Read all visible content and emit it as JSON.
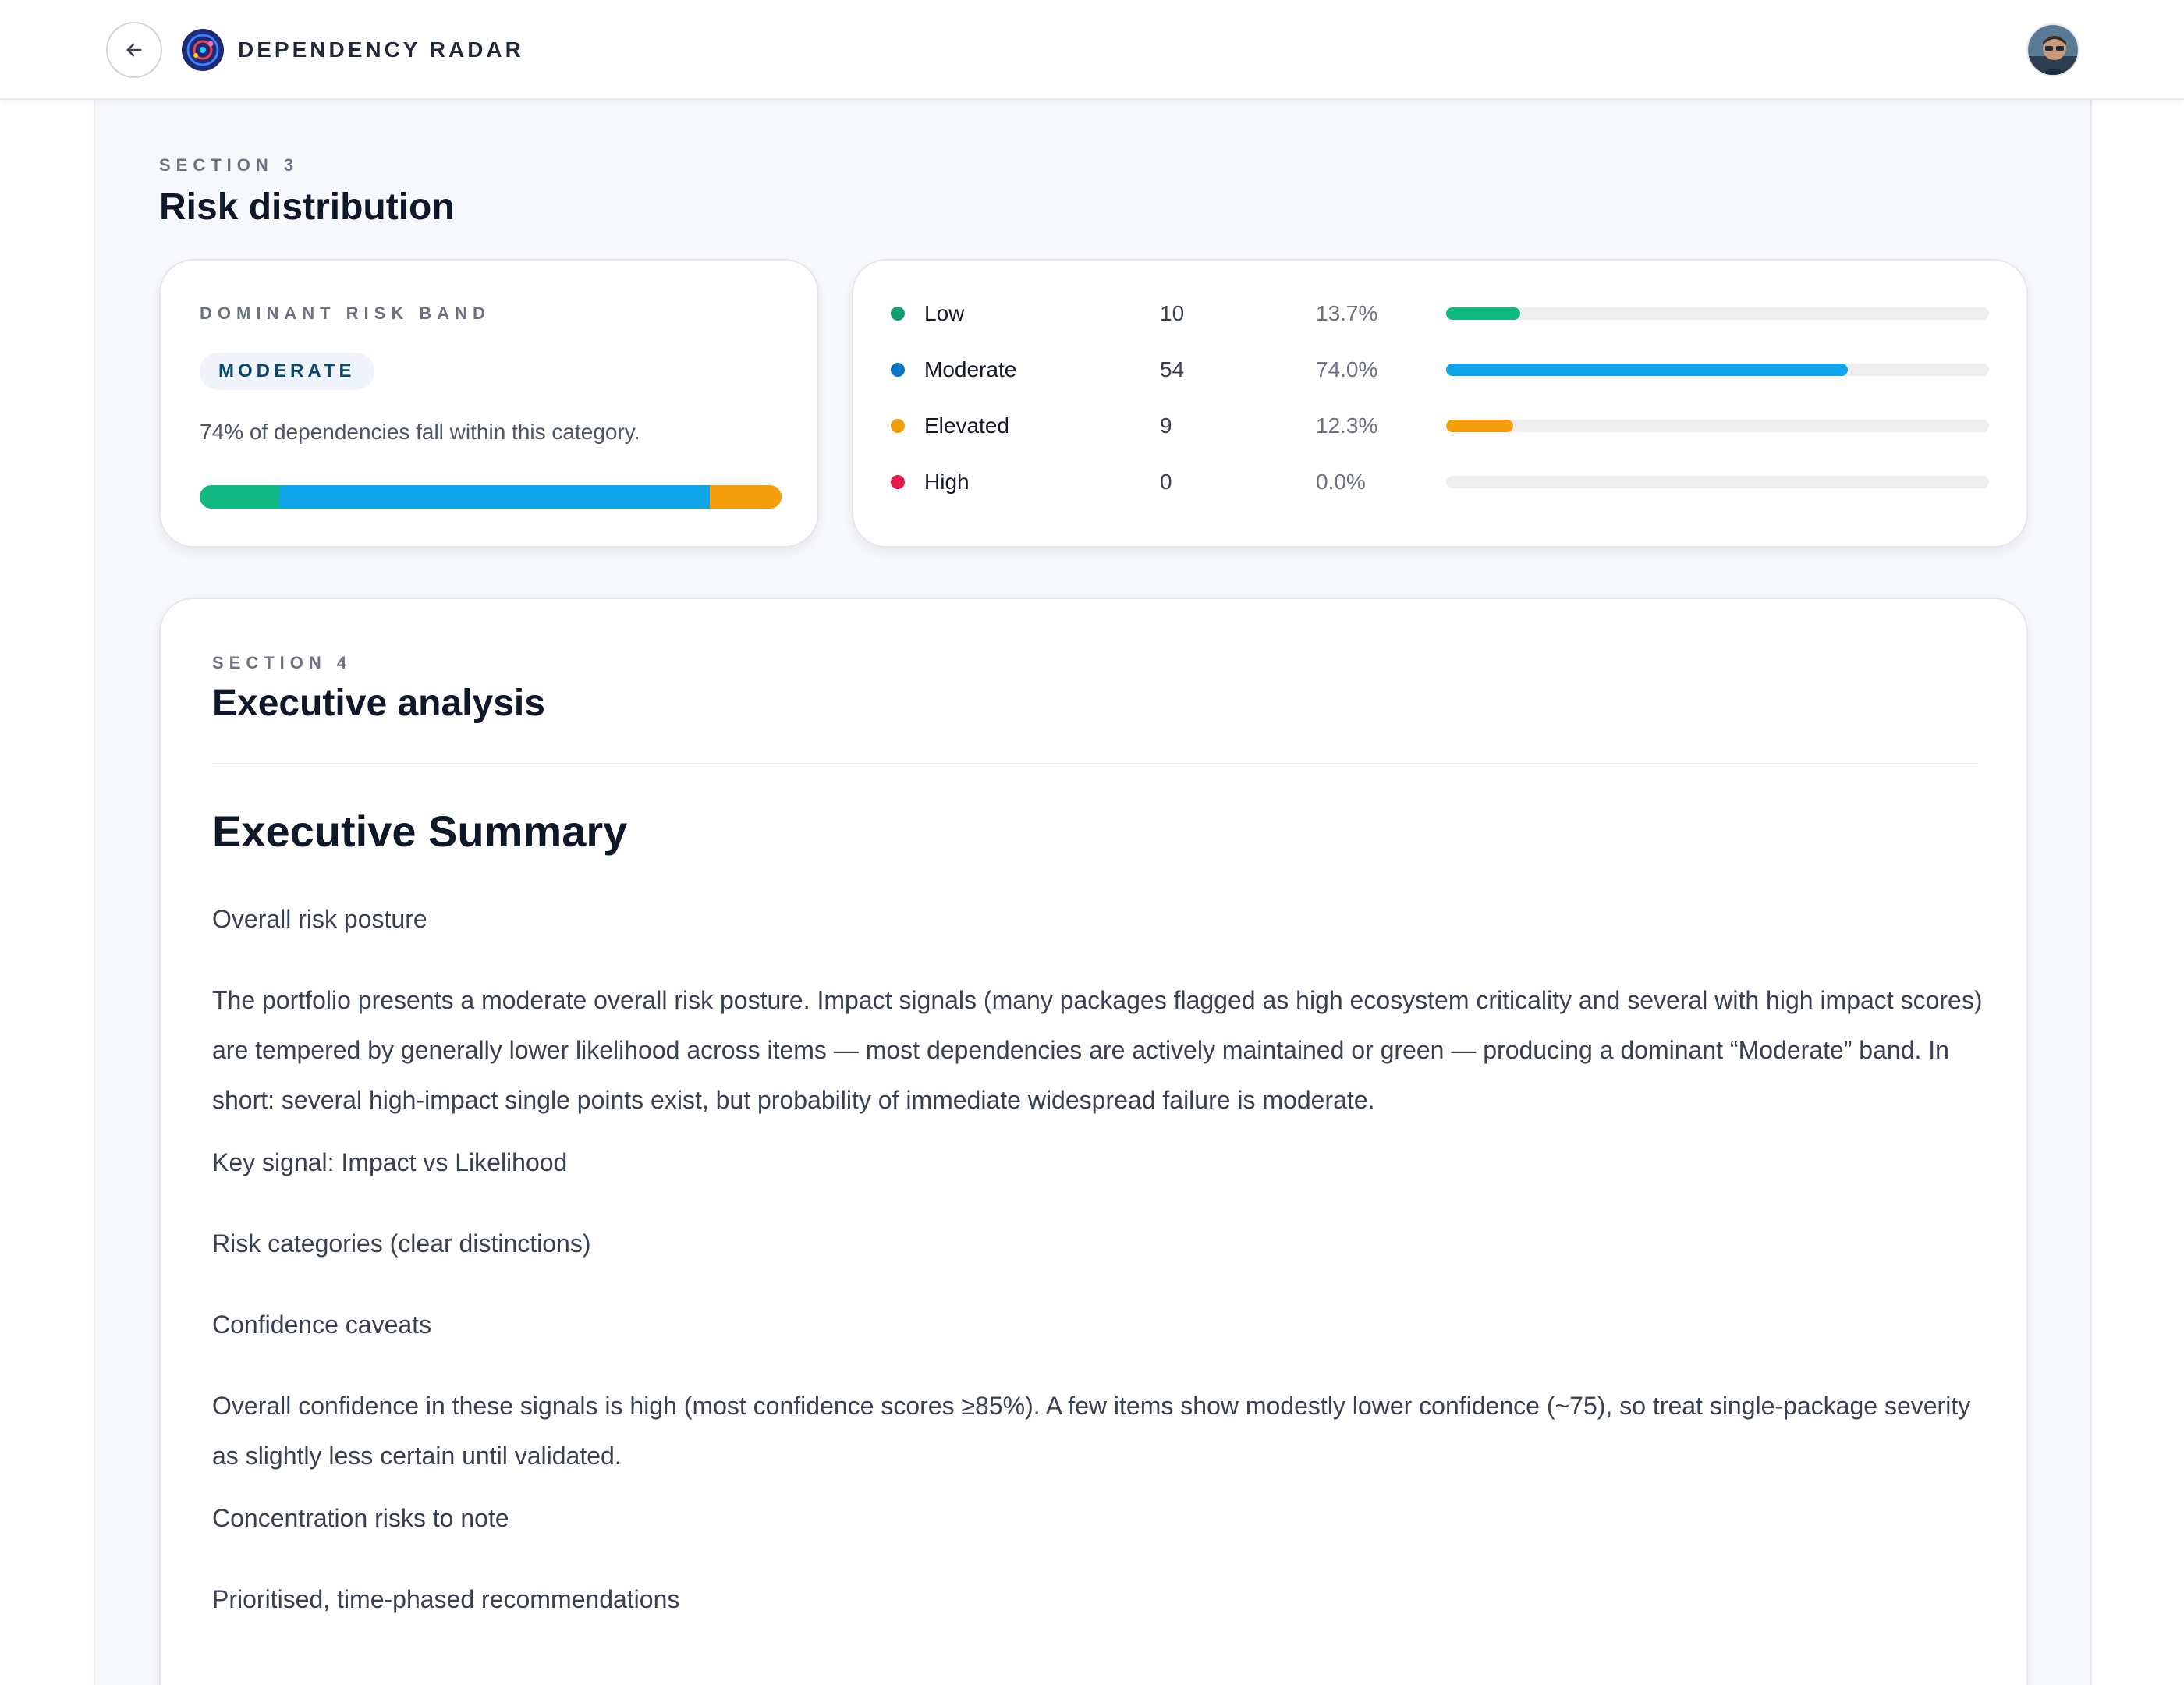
{
  "header": {
    "app_title": "DEPENDENCY RADAR",
    "back_icon": "arrow-left-icon",
    "logo_icon": "radar-logo-icon"
  },
  "section3": {
    "eyebrow": "SECTION 3",
    "title": "Risk distribution",
    "dominant": {
      "label": "DOMINANT RISK BAND",
      "band": "MODERATE",
      "description": "74% of dependencies fall within this category."
    },
    "distribution": [
      {
        "label": "Low",
        "count": "10",
        "pct": "13.7%",
        "value": 13.7,
        "color": "#10b981",
        "dot": "#0f9e6e"
      },
      {
        "label": "Moderate",
        "count": "54",
        "pct": "74.0%",
        "value": 74.0,
        "color": "#0ea5e9",
        "dot": "#0b78c6"
      },
      {
        "label": "Elevated",
        "count": "9",
        "pct": "12.3%",
        "value": 12.3,
        "color": "#f59e0b",
        "dot": "#f59e0b"
      },
      {
        "label": "High",
        "count": "0",
        "pct": "0.0%",
        "value": 0.0,
        "color": "#e11d48",
        "dot": "#e11d48"
      }
    ]
  },
  "section4": {
    "eyebrow": "SECTION 4",
    "title": "Executive analysis",
    "heading": "Executive Summary",
    "paragraphs": [
      "Overall risk posture",
      "The portfolio presents a moderate overall risk posture. Impact signals (many packages flagged as high ecosystem criticality and several with high impact scores) are tempered by generally lower likelihood across items — most dependencies are actively maintained or green — producing a dominant “Moderate” band. In short: several high-impact single points exist, but probability of immediate widespread failure is moderate.",
      "Key signal: Impact vs Likelihood",
      "Risk categories (clear distinctions)",
      "Confidence caveats",
      "Overall confidence in these signals is high (most confidence scores ≥85%). A few items show modestly lower confidence (~75), so treat single-package severity as slightly less certain until validated.",
      "Concentration risks to note",
      "Prioritised, time-phased recommendations"
    ]
  }
}
